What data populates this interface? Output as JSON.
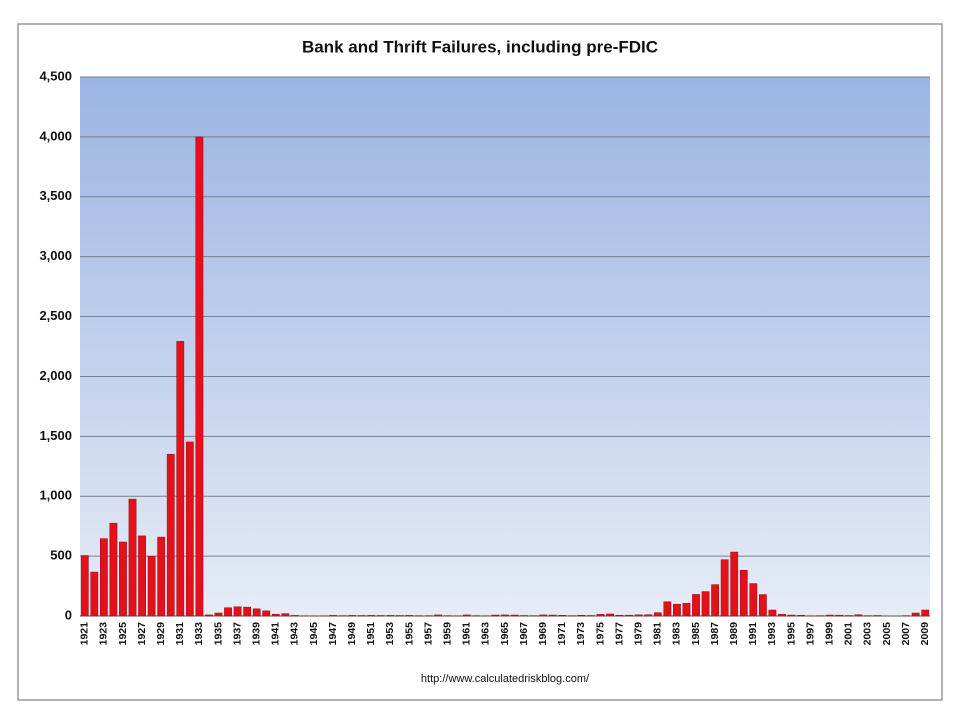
{
  "chart_data": {
    "type": "bar",
    "title": "Bank and Thrift Failures, including pre-FDIC",
    "source": "http://www.calculatedriskblog.com/",
    "categories": [
      "1921",
      null,
      "1923",
      null,
      "1925",
      null,
      "1927",
      null,
      "1929",
      null,
      "1931",
      null,
      "1933",
      null,
      "1935",
      null,
      "1937",
      null,
      "1939",
      null,
      "1941",
      null,
      "1943",
      null,
      "1945",
      null,
      "1947",
      null,
      "1949",
      null,
      "1951",
      null,
      "1953",
      null,
      "1955",
      null,
      "1957",
      null,
      "1959",
      null,
      "1961",
      null,
      "1963",
      null,
      "1965",
      null,
      "1967",
      null,
      "1969",
      null,
      "1971",
      null,
      "1973",
      null,
      "1975",
      null,
      "1977",
      null,
      "1979",
      null,
      "1981",
      null,
      "1983",
      null,
      "1985",
      null,
      "1987",
      null,
      "1989",
      null,
      "1991",
      null,
      "1993",
      null,
      "1995",
      null,
      "1997",
      null,
      "1999",
      null,
      "2001",
      null,
      "2003",
      null,
      "2005",
      null,
      "2007",
      null,
      "2009"
    ],
    "values": [
      505,
      367,
      646,
      775,
      618,
      976,
      669,
      499,
      659,
      1350,
      2293,
      1453,
      4000,
      9,
      25,
      69,
      77,
      74,
      60,
      43,
      15,
      20,
      5,
      2,
      1,
      1,
      5,
      3,
      5,
      4,
      5,
      4,
      5,
      4,
      5,
      3,
      3,
      9,
      3,
      2,
      9,
      3,
      2,
      8,
      9,
      8,
      4,
      3,
      9,
      8,
      6,
      3,
      6,
      4,
      14,
      17,
      6,
      7,
      10,
      11,
      28,
      119,
      99,
      106,
      180,
      204,
      262,
      470,
      534,
      382,
      271,
      179,
      50,
      15,
      8,
      6,
      1,
      3,
      8,
      7,
      4,
      11,
      3,
      4,
      0,
      0,
      3,
      25,
      50
    ],
    "color": "#e3111a",
    "ylim": [
      0,
      4500
    ],
    "yticks": [
      0,
      500,
      {
        "value": 1000,
        "label": "1,000"
      },
      {
        "value": 1500,
        "label": "1,500"
      },
      {
        "value": 2000,
        "label": "2,000"
      },
      {
        "value": 2500,
        "label": "2,500"
      },
      {
        "value": 3000,
        "label": "3,000"
      },
      {
        "value": 3500,
        "label": "3,500"
      },
      {
        "value": 4000,
        "label": "4,000"
      },
      {
        "value": 4500,
        "label": "4,500"
      }
    ],
    "grid": true
  }
}
